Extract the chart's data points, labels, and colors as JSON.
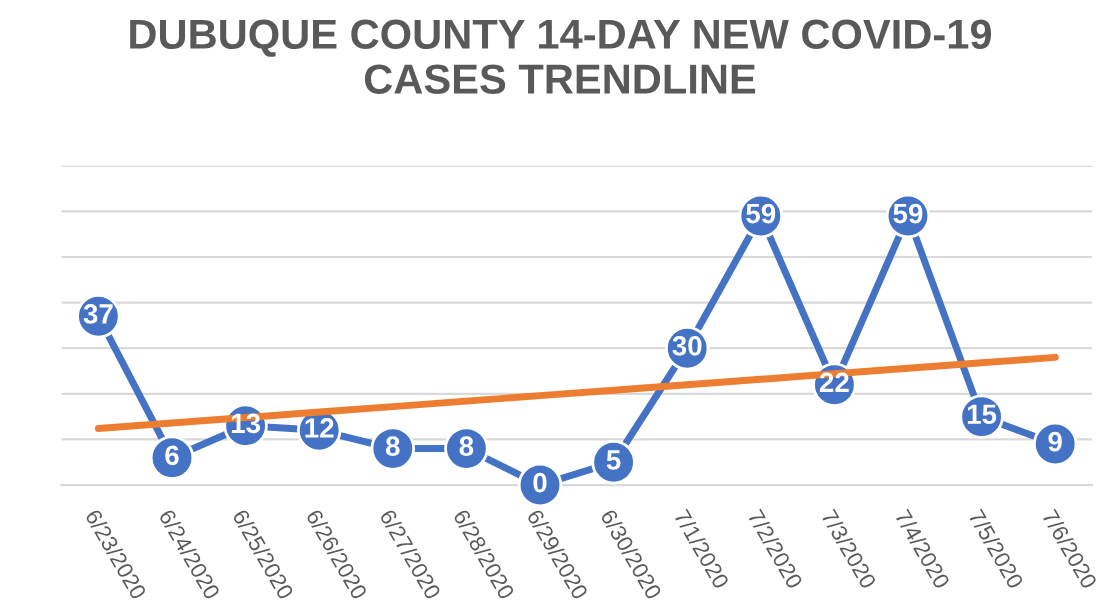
{
  "chart_data": {
    "type": "line",
    "title": "DUBUQUE COUNTY 14-DAY NEW COVID-19\nCASES TRENDLINE",
    "categories": [
      "6/23/2020",
      "6/24/2020",
      "6/25/2020",
      "6/26/2020",
      "6/27/2020",
      "6/28/2020",
      "6/29/2020",
      "6/30/2020",
      "7/1/2020",
      "7/2/2020",
      "7/3/2020",
      "7/4/2020",
      "7/5/2020",
      "7/6/2020"
    ],
    "series": [
      {
        "color": "#4472c4",
        "values": [
          37,
          6,
          13,
          12,
          8,
          8,
          0,
          5,
          30,
          59,
          22,
          59,
          15,
          9
        ],
        "value_labels": [
          "37",
          "6",
          "13",
          "12",
          "8",
          "8",
          "0",
          "5",
          "30",
          "59",
          "22",
          "59",
          "15",
          "9"
        ],
        "marker": "circle"
      },
      {
        "type": "line",
        "color": "#ed7d31",
        "values": [
          12.4,
          13.6,
          14.8,
          16.0,
          17.2,
          18.4,
          19.6,
          20.8,
          22.0,
          23.2,
          24.4,
          25.6,
          26.8,
          28.0
        ],
        "marker": "none"
      }
    ],
    "ylim": [
      0,
      70
    ],
    "yticks": [
      {
        "value": 0,
        "label": null
      },
      {
        "value": 10,
        "label": null
      },
      {
        "value": 20,
        "label": null
      },
      {
        "value": 30,
        "label": null
      },
      {
        "value": 40,
        "label": null
      },
      {
        "value": 50,
        "label": null
      },
      {
        "value": 60,
        "label": null
      },
      {
        "value": 70,
        "label": null
      }
    ],
    "grid": "y",
    "tick_labels": "x",
    "legend": false
  }
}
